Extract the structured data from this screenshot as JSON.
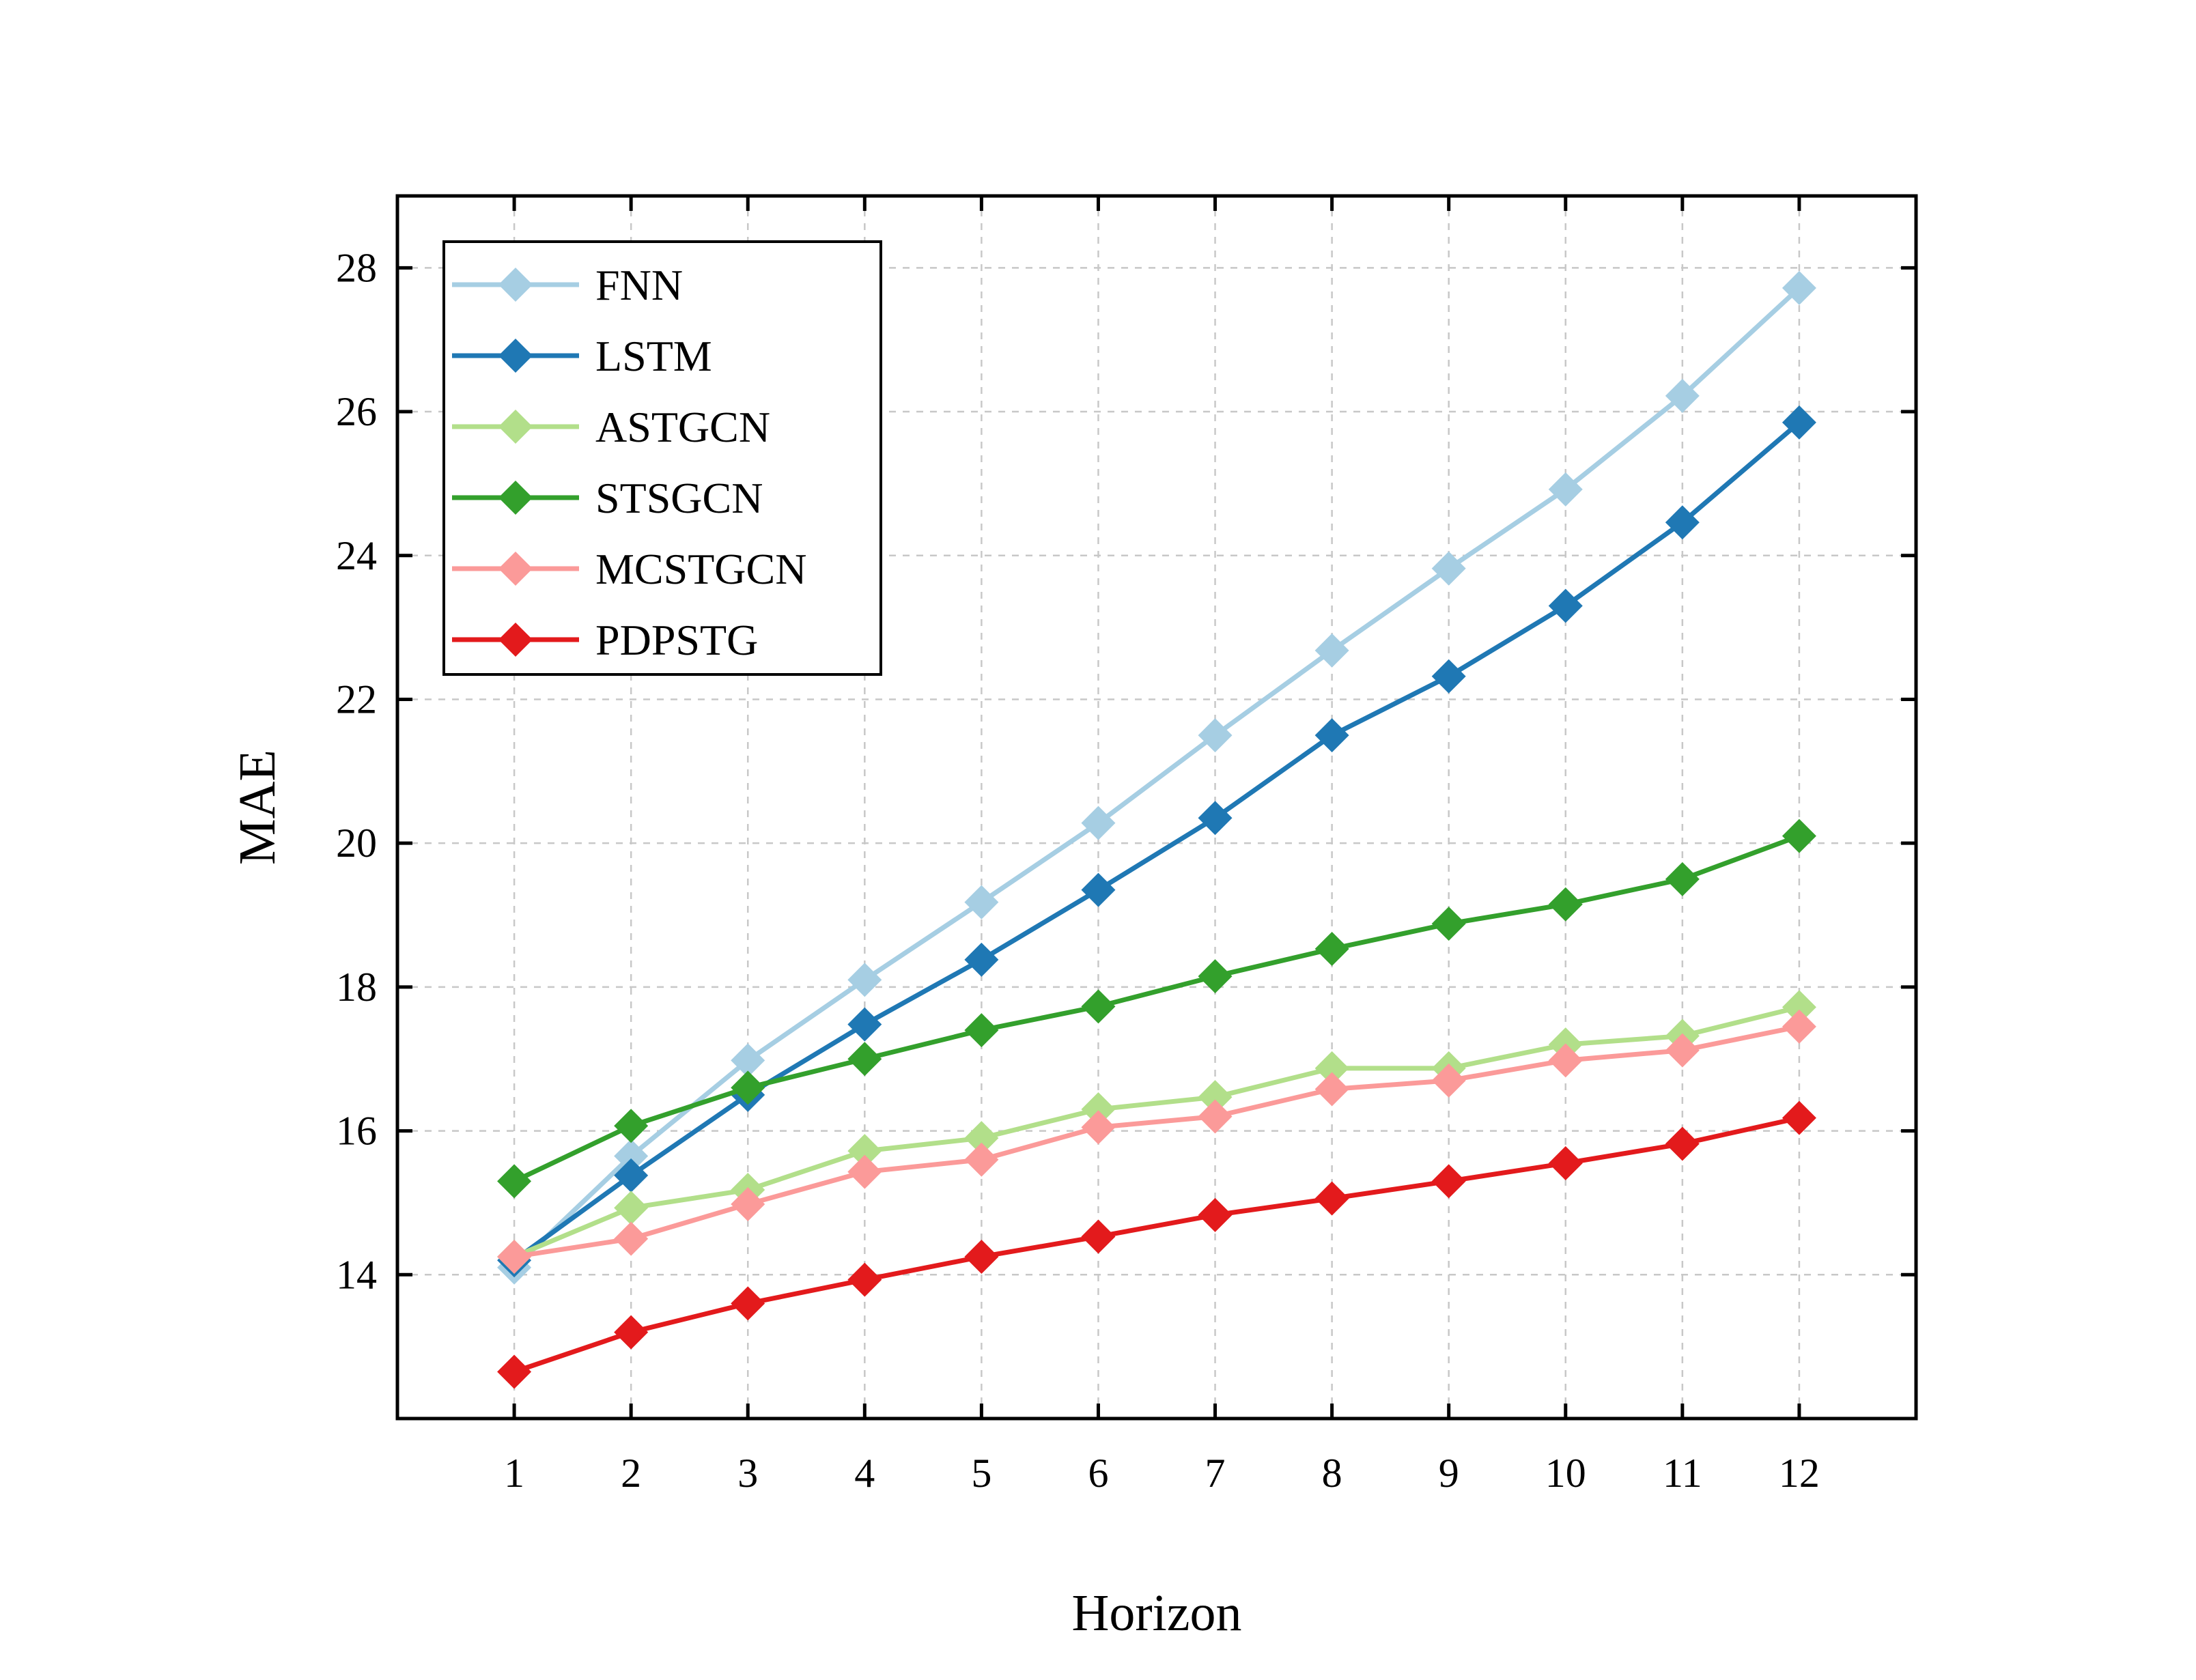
{
  "chart_data": {
    "type": "line",
    "xlabel": "Horizon",
    "ylabel": "MAE",
    "x": [
      1,
      2,
      3,
      4,
      5,
      6,
      7,
      8,
      9,
      10,
      11,
      12
    ],
    "xlim": [
      0,
      13
    ],
    "ylim": [
      12,
      29
    ],
    "yticks": [
      14,
      16,
      18,
      20,
      22,
      24,
      26,
      28
    ],
    "grid": true,
    "legend_position": "top-left",
    "marker": "diamond",
    "series": [
      {
        "name": "FNN",
        "color": "#a6cee3",
        "values": [
          14.1,
          15.65,
          16.98,
          18.1,
          19.18,
          20.28,
          21.5,
          22.68,
          23.82,
          24.92,
          26.22,
          27.72
        ]
      },
      {
        "name": "LSTM",
        "color": "#1f78b4",
        "values": [
          14.2,
          15.38,
          16.5,
          17.48,
          18.38,
          19.35,
          20.35,
          21.5,
          22.32,
          23.3,
          24.46,
          25.85
        ]
      },
      {
        "name": "ASTGCN",
        "color": "#b2df8a",
        "values": [
          14.25,
          14.93,
          15.18,
          15.72,
          15.9,
          16.3,
          16.47,
          16.87,
          16.87,
          17.2,
          17.32,
          17.72
        ]
      },
      {
        "name": "STSGCN",
        "color": "#33a02c",
        "values": [
          15.3,
          16.07,
          16.6,
          17.0,
          17.4,
          17.73,
          18.15,
          18.53,
          18.88,
          19.15,
          19.5,
          20.1
        ]
      },
      {
        "name": "MCSTGCN",
        "color": "#fb9a99",
        "values": [
          14.25,
          14.5,
          14.98,
          15.43,
          15.6,
          16.05,
          16.2,
          16.58,
          16.7,
          16.98,
          17.12,
          17.45
        ]
      },
      {
        "name": "PDPSTG",
        "color": "#e31a1c",
        "values": [
          12.65,
          13.2,
          13.6,
          13.93,
          14.25,
          14.53,
          14.83,
          15.06,
          15.3,
          15.55,
          15.82,
          16.18
        ]
      }
    ]
  }
}
